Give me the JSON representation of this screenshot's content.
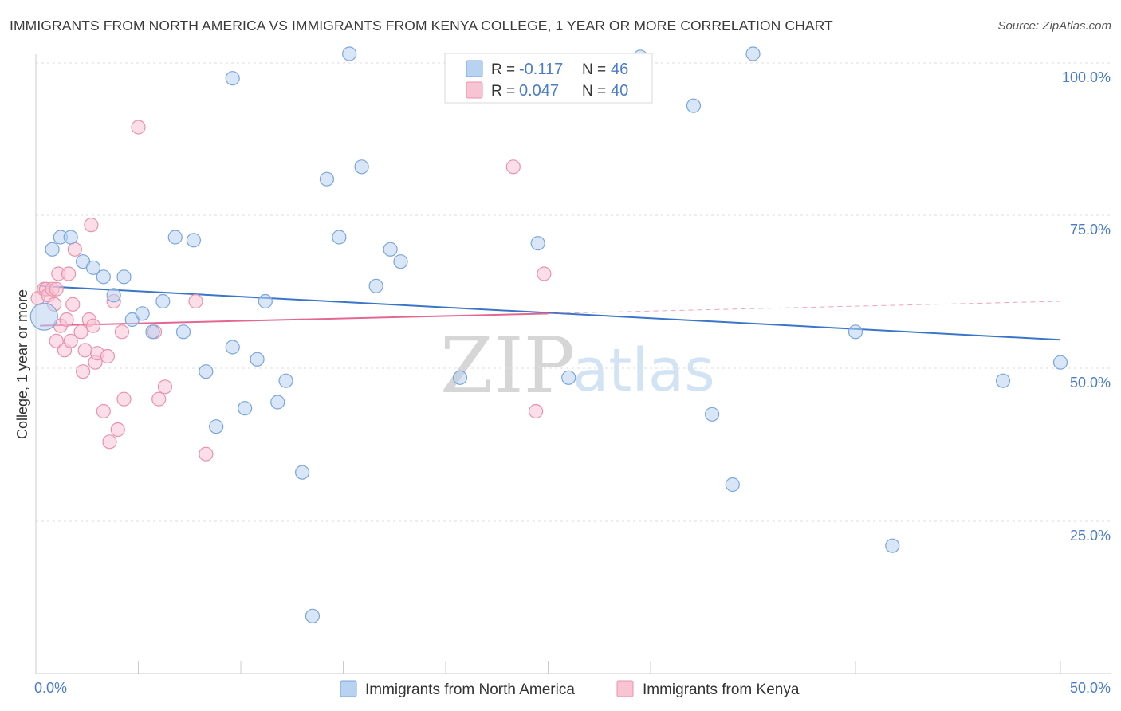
{
  "title": "IMMIGRANTS FROM NORTH AMERICA VS IMMIGRANTS FROM KENYA COLLEGE, 1 YEAR OR MORE CORRELATION CHART",
  "source": "Source: ZipAtlas.com",
  "watermark": {
    "zip": "ZIP",
    "atlas": "atlas"
  },
  "legend": {
    "rows": [
      {
        "r_label": "R =",
        "r_value": "-0.117",
        "n_label": "N =",
        "n_value": "46"
      },
      {
        "r_label": "R =",
        "r_value": "0.047",
        "n_label": "N =",
        "n_value": "40"
      }
    ]
  },
  "colors": {
    "blue_fill": "#b8d2f2",
    "blue_stroke": "#7aa6dc",
    "blue_line": "#3a76c8",
    "pink_fill": "#f8c3d3",
    "pink_stroke": "#ea92ad",
    "pink_line": "#e36792",
    "grid": "#dddddd",
    "tick_text": "#4a7cc9"
  },
  "chart_data": {
    "type": "scatter",
    "title": "IMMIGRANTS FROM NORTH AMERICA VS IMMIGRANTS FROM KENYA COLLEGE, 1 YEAR OR MORE CORRELATION CHART",
    "xlabel": "",
    "ylabel": "College, 1 year or more",
    "xlim": [
      0,
      50
    ],
    "ylim": [
      0,
      105
    ],
    "x_tick_labels": [
      "0.0%",
      "50.0%"
    ],
    "y_ticks": [
      25,
      50,
      75,
      100
    ],
    "y_tick_labels": [
      "25.0%",
      "50.0%",
      "75.0%",
      "100.0%"
    ],
    "grid": "horizontal dashed",
    "legend_position": "top-center",
    "series": [
      {
        "name": "Immigrants from North America",
        "color": "#b8d2f2",
        "trend": {
          "x": [
            0.2,
            50
          ],
          "y": [
            63.5,
            54.7
          ]
        },
        "points": [
          {
            "x": 0.4,
            "y": 58.5,
            "size": "large"
          },
          {
            "x": 0.8,
            "y": 69.5
          },
          {
            "x": 1.2,
            "y": 71.5
          },
          {
            "x": 1.7,
            "y": 71.5
          },
          {
            "x": 2.3,
            "y": 67.5
          },
          {
            "x": 2.8,
            "y": 66.5
          },
          {
            "x": 3.3,
            "y": 65.0
          },
          {
            "x": 3.8,
            "y": 62.0
          },
          {
            "x": 4.3,
            "y": 65.0
          },
          {
            "x": 4.7,
            "y": 58.0
          },
          {
            "x": 5.2,
            "y": 59.0
          },
          {
            "x": 5.7,
            "y": 56.0
          },
          {
            "x": 6.2,
            "y": 61.0
          },
          {
            "x": 6.8,
            "y": 71.5
          },
          {
            "x": 7.2,
            "y": 56.0
          },
          {
            "x": 7.7,
            "y": 71.0
          },
          {
            "x": 8.3,
            "y": 49.5
          },
          {
            "x": 8.8,
            "y": 40.5
          },
          {
            "x": 9.6,
            "y": 97.5
          },
          {
            "x": 9.6,
            "y": 53.5
          },
          {
            "x": 10.2,
            "y": 43.5
          },
          {
            "x": 10.8,
            "y": 51.5
          },
          {
            "x": 11.2,
            "y": 61.0
          },
          {
            "x": 11.8,
            "y": 44.5
          },
          {
            "x": 12.2,
            "y": 48.0
          },
          {
            "x": 13.0,
            "y": 33.0
          },
          {
            "x": 13.5,
            "y": 9.5
          },
          {
            "x": 14.2,
            "y": 81.0
          },
          {
            "x": 14.8,
            "y": 71.5
          },
          {
            "x": 15.3,
            "y": 101.5
          },
          {
            "x": 15.9,
            "y": 83.0
          },
          {
            "x": 16.6,
            "y": 63.5
          },
          {
            "x": 17.3,
            "y": 69.5
          },
          {
            "x": 17.8,
            "y": 67.5
          },
          {
            "x": 20.7,
            "y": 48.5
          },
          {
            "x": 29.5,
            "y": 101.0
          },
          {
            "x": 24.5,
            "y": 70.5
          },
          {
            "x": 26.0,
            "y": 48.5
          },
          {
            "x": 32.1,
            "y": 93.0
          },
          {
            "x": 33.0,
            "y": 42.5
          },
          {
            "x": 34.0,
            "y": 31.0
          },
          {
            "x": 35.0,
            "y": 101.5
          },
          {
            "x": 40.0,
            "y": 56.0
          },
          {
            "x": 41.8,
            "y": 21.0
          },
          {
            "x": 47.2,
            "y": 48.0
          },
          {
            "x": 50.0,
            "y": 51.0
          }
        ]
      },
      {
        "name": "Immigrants from Kenya",
        "color": "#f8c3d3",
        "trend": {
          "x": [
            0.2,
            25
          ],
          "y": [
            57.0,
            59.0
          ]
        },
        "trend_extension": {
          "x": [
            25,
            50
          ],
          "y": [
            59.0,
            61.0
          ]
        },
        "points": [
          {
            "x": 0.1,
            "y": 61.5
          },
          {
            "x": 0.4,
            "y": 63.0
          },
          {
            "x": 0.5,
            "y": 63.0
          },
          {
            "x": 0.6,
            "y": 62.0
          },
          {
            "x": 0.8,
            "y": 63.0
          },
          {
            "x": 0.9,
            "y": 60.5
          },
          {
            "x": 1.0,
            "y": 63.0
          },
          {
            "x": 1.0,
            "y": 54.5
          },
          {
            "x": 1.1,
            "y": 65.5
          },
          {
            "x": 1.2,
            "y": 57.0
          },
          {
            "x": 1.4,
            "y": 53.0
          },
          {
            "x": 1.5,
            "y": 58.0
          },
          {
            "x": 1.6,
            "y": 65.5
          },
          {
            "x": 1.7,
            "y": 54.5
          },
          {
            "x": 1.8,
            "y": 60.5
          },
          {
            "x": 1.9,
            "y": 69.5
          },
          {
            "x": 2.2,
            "y": 56.0
          },
          {
            "x": 2.3,
            "y": 49.5
          },
          {
            "x": 2.4,
            "y": 53.0
          },
          {
            "x": 2.6,
            "y": 58.0
          },
          {
            "x": 2.7,
            "y": 73.5
          },
          {
            "x": 2.8,
            "y": 57.0
          },
          {
            "x": 2.9,
            "y": 51.0
          },
          {
            "x": 3.0,
            "y": 52.5
          },
          {
            "x": 3.3,
            "y": 43.0
          },
          {
            "x": 3.5,
            "y": 52.0
          },
          {
            "x": 3.6,
            "y": 38.0
          },
          {
            "x": 3.8,
            "y": 61.0
          },
          {
            "x": 4.0,
            "y": 40.0
          },
          {
            "x": 4.2,
            "y": 56.0
          },
          {
            "x": 4.3,
            "y": 45.0
          },
          {
            "x": 5.0,
            "y": 89.5
          },
          {
            "x": 5.8,
            "y": 56.0
          },
          {
            "x": 6.0,
            "y": 45.0
          },
          {
            "x": 6.3,
            "y": 47.0
          },
          {
            "x": 7.8,
            "y": 61.0
          },
          {
            "x": 8.3,
            "y": 36.0
          },
          {
            "x": 23.3,
            "y": 83.0
          },
          {
            "x": 24.4,
            "y": 43.0
          },
          {
            "x": 24.8,
            "y": 65.5
          }
        ]
      }
    ]
  }
}
